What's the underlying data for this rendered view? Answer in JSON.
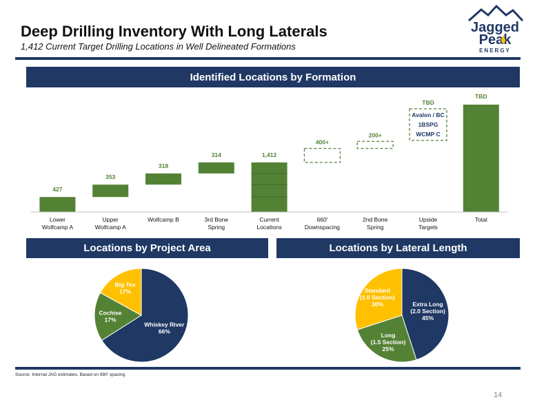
{
  "slide": {
    "title": "Deep Drilling Inventory With Long Laterals",
    "subtitle": "1,412 Current Target Drilling Locations in Well Delineated Formations",
    "source": "Source: Internal JAG estimates. Based on 880' spacing.",
    "page_number": "14"
  },
  "logo": {
    "line1": "Jagged",
    "line2": "Peak",
    "line3": "ENERGY"
  },
  "colors": {
    "navy": "#1f3864",
    "green": "#548235",
    "gold": "#ffc000",
    "dark_green": "#3d6b29"
  },
  "chart_data": [
    {
      "type": "bar",
      "title": "Identified Locations by Formation",
      "categories": [
        "Lower\nWolfcamp A",
        "Upper\nWolfcamp A",
        "Wolfcamp B",
        "3rd Bone\nSpring",
        "Current\nLocations",
        "660'\nDownspacing",
        "2nd Bone\nSpring",
        "Upside\nTargets",
        "Total"
      ],
      "labels": [
        "427",
        "353",
        "318",
        "314",
        "1,412",
        "400+",
        "200+",
        "TBD",
        "TBD"
      ],
      "values": [
        427,
        353,
        318,
        314,
        1412,
        400,
        200,
        null,
        null
      ],
      "style": [
        "solid",
        "solid",
        "solid",
        "solid",
        "stacked",
        "dashed",
        "dashed",
        "dashed",
        "solid"
      ],
      "upside_box_text": [
        "Avalon / BC",
        "1BSPG",
        "WCMP C"
      ]
    },
    {
      "type": "pie",
      "title": "Locations by Project Area",
      "slices": [
        {
          "name": "Whiskey River",
          "value": 66,
          "label": "66%",
          "color": "#1f3864"
        },
        {
          "name": "Cochise",
          "value": 17,
          "label": "17%",
          "color": "#548235"
        },
        {
          "name": "Big Tex",
          "value": 17,
          "label": "17%",
          "color": "#ffc000"
        }
      ]
    },
    {
      "type": "pie",
      "title": "Locations by Lateral Length",
      "slices": [
        {
          "name": "Extra Long\n(2.0 Section)",
          "value": 45,
          "label": "45%",
          "color": "#1f3864"
        },
        {
          "name": "Long\n(1.5 Section)",
          "value": 25,
          "label": "25%",
          "color": "#548235"
        },
        {
          "name": "Standard\n(1.0 Section)",
          "value": 30,
          "label": "30%",
          "color": "#ffc000"
        }
      ]
    }
  ]
}
